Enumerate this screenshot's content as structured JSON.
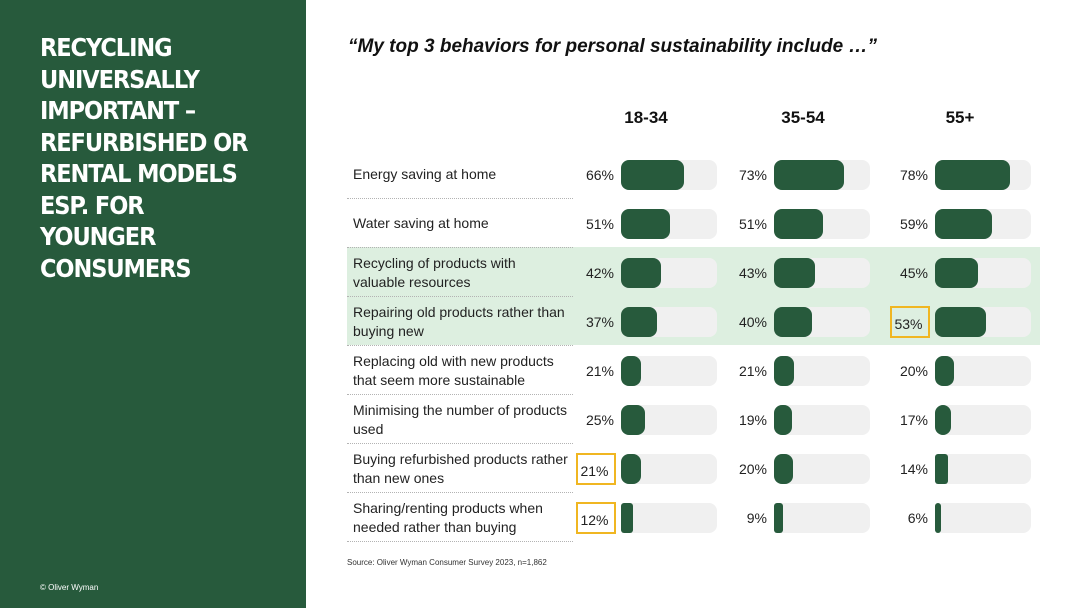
{
  "headline": "RECYCLING UNIVERSALLY IMPORTANT – REFURBISHED OR RENTAL MODELS ESP. FOR YOUNGER CONSUMERS",
  "copyright": "© Oliver Wyman",
  "quote": "“My top 3 behaviors for personal sustainability include …”",
  "source": "Source: Oliver Wyman Consumer Survey 2023, n=1,862",
  "colors": {
    "panel": "#275a3c",
    "bar": "#275a3c",
    "track": "#f0f0f0",
    "highlight_band": "#ddefe0",
    "highlight_box": "#f0b621"
  },
  "chart_data": {
    "type": "bar",
    "orientation": "horizontal",
    "ylim": [
      0,
      100
    ],
    "categories": [
      "Energy saving at home",
      "Water saving at home",
      "Recycling of products with valuable resources",
      "Repairing old products rather than buying new",
      "Replacing old with new products that seem more sustainable",
      "Minimising the number of products used",
      "Buying refurbished products rather than new ones",
      "Sharing/renting products when needed rather than buying"
    ],
    "series": [
      {
        "name": "18-34",
        "values": [
          66,
          51,
          42,
          37,
          21,
          25,
          21,
          12
        ],
        "highlighted_indices": [
          6,
          7
        ]
      },
      {
        "name": "35-54",
        "values": [
          73,
          51,
          43,
          40,
          21,
          19,
          20,
          9
        ],
        "highlighted_indices": []
      },
      {
        "name": "55+",
        "values": [
          78,
          59,
          45,
          53,
          20,
          17,
          14,
          6
        ],
        "highlighted_indices": [
          3
        ]
      }
    ],
    "highlighted_rows": [
      2,
      3
    ],
    "value_suffix": "%"
  }
}
